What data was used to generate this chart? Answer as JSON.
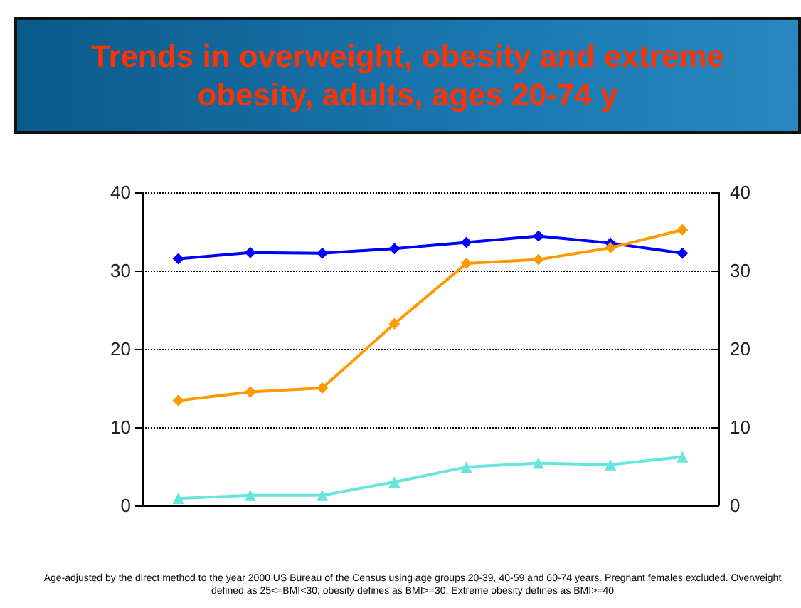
{
  "chart_data": {
    "type": "line",
    "title": "Trends in overweight, obesity and extreme obesity, adults, ages 20-74 y",
    "categories": [
      null,
      null,
      null,
      null,
      null,
      null,
      null,
      null
    ],
    "series": [
      {
        "color": "#0000ff",
        "marker": "diamond",
        "values": [
          31.5,
          32.3,
          32.2,
          32.8,
          33.6,
          34.4,
          33.5,
          32.2
        ]
      },
      {
        "color": "#ff9900",
        "marker": "diamond",
        "values": [
          13.4,
          14.5,
          15.0,
          23.2,
          30.9,
          31.4,
          32.9,
          35.2
        ]
      },
      {
        "color": "#66e6dd",
        "marker": "triangle",
        "values": [
          0.9,
          1.3,
          1.3,
          3.0,
          4.9,
          5.4,
          5.2,
          6.2
        ]
      }
    ],
    "ylim": [
      0,
      40
    ],
    "yticks": [
      0,
      10,
      20,
      30,
      40
    ],
    "y2lim": [
      0,
      40
    ],
    "y2ticks": [
      0,
      10,
      20,
      30,
      40
    ],
    "grid": "y",
    "line_style": "solid",
    "annotations": [
      "Age-adjusted by the direct method to the year 2000 US Bureau of the Census using age groups 20-39, 40-59 and 60-74 years. Pregnant females excluded. Overweight defined as 25<=BMI<30; obesity defines as BMI>=30; Extreme obesity defines as BMI>=40"
    ]
  }
}
